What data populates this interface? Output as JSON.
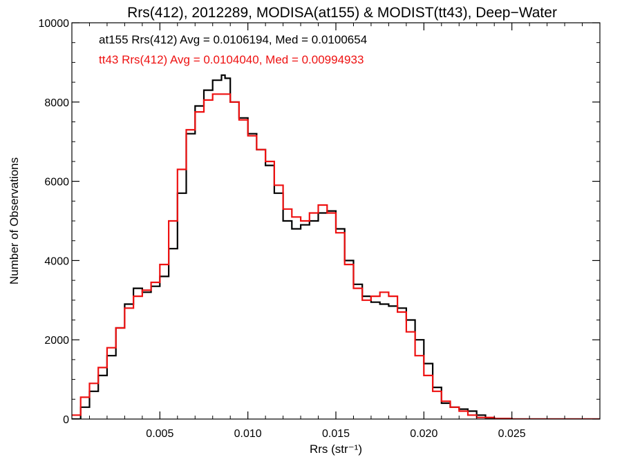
{
  "chart_data": {
    "type": "line",
    "title": "Rrs(412), 2012289, MODISA(at155) & MODIST(tt43), Deep−Water",
    "xlabel": "Rrs (str⁻¹)",
    "ylabel": "Number of Observations",
    "xlim": [
      0.0,
      0.03
    ],
    "ylim": [
      0,
      10000
    ],
    "xticks": [
      0.005,
      0.01,
      0.015,
      0.02,
      0.025
    ],
    "xtick_labels": [
      "0.005",
      "0.010",
      "0.015",
      "0.020",
      "0.025"
    ],
    "yticks": [
      0,
      2000,
      4000,
      6000,
      8000,
      10000
    ],
    "ytick_labels": [
      "0",
      "2000",
      "4000",
      "6000",
      "8000",
      "10000"
    ],
    "grid": false,
    "legend": "top-left",
    "annotations": [
      {
        "text": "at155 Rrs(412) Avg = 0.0106194, Med = 0.0100654",
        "color": "#000000"
      },
      {
        "text": "tt43 Rrs(412) Avg = 0.0104040, Med = 0.00994933",
        "color": "#ee1111"
      }
    ],
    "series": [
      {
        "color": "#000000",
        "step": true,
        "x": [
          0.0,
          0.0005,
          0.001,
          0.0015,
          0.002,
          0.0025,
          0.003,
          0.0035,
          0.004,
          0.0045,
          0.005,
          0.0055,
          0.006,
          0.0065,
          0.007,
          0.0075,
          0.008,
          0.0085,
          0.0087,
          0.009,
          0.0095,
          0.01,
          0.0105,
          0.011,
          0.0115,
          0.012,
          0.0125,
          0.013,
          0.0135,
          0.014,
          0.0145,
          0.015,
          0.0155,
          0.016,
          0.0165,
          0.017,
          0.0175,
          0.018,
          0.0185,
          0.019,
          0.0195,
          0.02,
          0.0205,
          0.021,
          0.0215,
          0.022,
          0.0225,
          0.023,
          0.0235,
          0.024,
          0.025,
          0.026,
          0.03
        ],
        "y": [
          0,
          300,
          700,
          1100,
          1600,
          2300,
          2900,
          3300,
          3200,
          3350,
          3600,
          4300,
          5700,
          7200,
          7900,
          8300,
          8550,
          8680,
          8600,
          8000,
          7600,
          7200,
          6800,
          6400,
          5700,
          5000,
          4800,
          4900,
          5000,
          5200,
          5250,
          4800,
          4000,
          3400,
          3100,
          2950,
          2900,
          2850,
          2800,
          2500,
          2000,
          1400,
          800,
          400,
          300,
          250,
          200,
          100,
          30,
          10,
          0,
          0,
          0
        ]
      },
      {
        "color": "#ee1111",
        "step": true,
        "x": [
          0.0,
          0.0005,
          0.001,
          0.0015,
          0.002,
          0.0025,
          0.003,
          0.0035,
          0.004,
          0.0045,
          0.005,
          0.0055,
          0.006,
          0.0065,
          0.007,
          0.0075,
          0.008,
          0.0085,
          0.009,
          0.0095,
          0.01,
          0.0105,
          0.011,
          0.0115,
          0.012,
          0.0125,
          0.013,
          0.0135,
          0.014,
          0.0145,
          0.015,
          0.0155,
          0.016,
          0.0165,
          0.017,
          0.0175,
          0.018,
          0.0185,
          0.019,
          0.0195,
          0.02,
          0.0205,
          0.021,
          0.0215,
          0.022,
          0.0225,
          0.023,
          0.024,
          0.025,
          0.026,
          0.03
        ],
        "y": [
          100,
          550,
          900,
          1300,
          1800,
          2300,
          2800,
          3100,
          3250,
          3450,
          3900,
          5000,
          6300,
          7300,
          7750,
          8050,
          8200,
          8200,
          8000,
          7550,
          7150,
          6800,
          6500,
          5900,
          5300,
          5100,
          5000,
          5200,
          5400,
          5200,
          4700,
          3900,
          3300,
          3000,
          3100,
          3200,
          3100,
          2700,
          2200,
          1600,
          1100,
          700,
          450,
          300,
          200,
          100,
          40,
          10,
          0,
          0,
          0
        ]
      }
    ]
  }
}
